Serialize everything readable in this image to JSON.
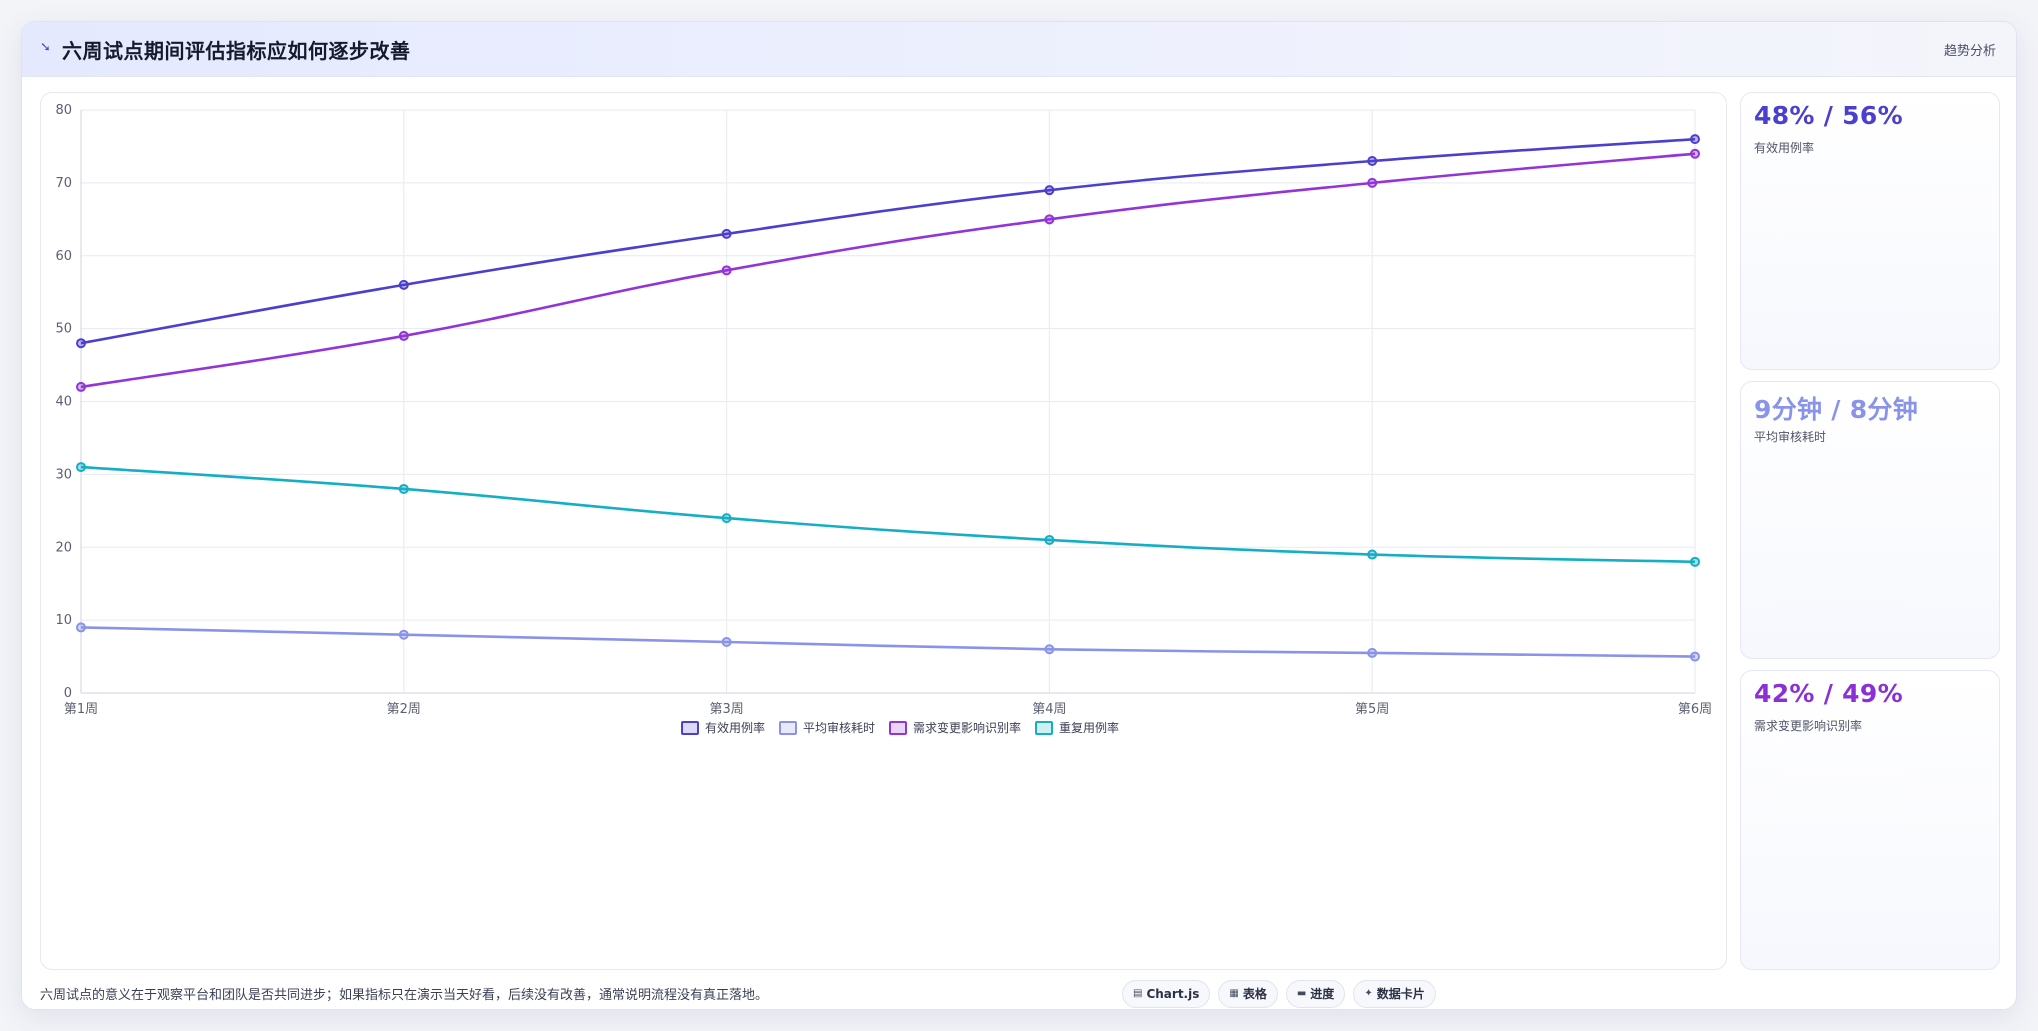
{
  "header": {
    "icon": "trend-arrow-icon",
    "title": "六周试点期间评估指标应如何逐步改善",
    "tag": "趋势分析"
  },
  "chart_data": {
    "type": "line",
    "categories": [
      "第1周",
      "第2周",
      "第3周",
      "第4周",
      "第5周",
      "第6周"
    ],
    "ylim": [
      0,
      80
    ],
    "yticks": [
      0,
      10,
      20,
      30,
      40,
      50,
      60,
      70,
      80
    ],
    "grid": true,
    "legend_position": "bottom",
    "series": [
      {
        "name": "有效用例率",
        "color": "#4b3fcf",
        "values": [
          48,
          56,
          63,
          69,
          73,
          76
        ]
      },
      {
        "name": "平均审核耗时",
        "color": "#8a93ea",
        "values": [
          9,
          8,
          7,
          6,
          5.5,
          5
        ]
      },
      {
        "name": "需求变更影响识别率",
        "color": "#9333d8",
        "values": [
          42,
          49,
          58,
          65,
          70,
          74
        ]
      },
      {
        "name": "重复用例率",
        "color": "#14afc4",
        "values": [
          31,
          28,
          24,
          21,
          19,
          18
        ]
      }
    ]
  },
  "stats": [
    {
      "value": "48% / 56%",
      "label": "有效用例率",
      "color": "#4b3fcf"
    },
    {
      "value": "9分钟 / 8分钟",
      "label": "平均审核耗时",
      "color": "#8a93ea"
    },
    {
      "value": "42% / 49%",
      "label": "需求变更影响识别率",
      "color": "#8b2fd6"
    }
  ],
  "footer": {
    "note": "六周试点的意义在于观察平台和团队是否共同进步；如果指标只在演示当天好看，后续没有改善，通常说明流程没有真正落地。",
    "pills": [
      {
        "icon": "chart-icon",
        "label": "Chart.js"
      },
      {
        "icon": "table-icon",
        "label": "表格"
      },
      {
        "icon": "progress-icon",
        "label": "进度"
      },
      {
        "icon": "sparkle-icon",
        "label": "数据卡片"
      }
    ]
  }
}
